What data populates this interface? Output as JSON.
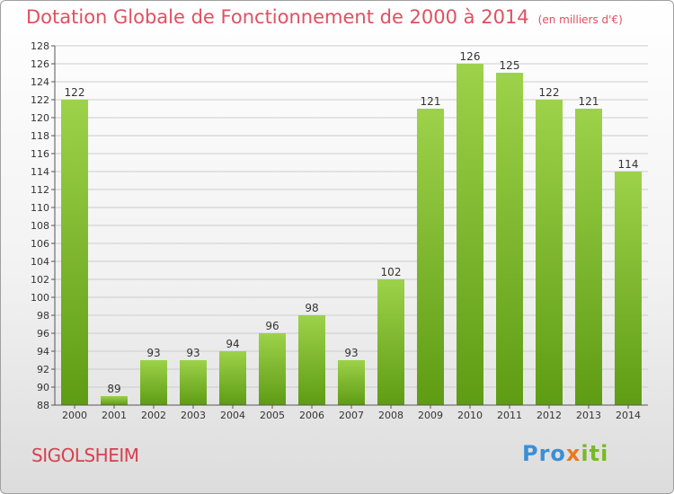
{
  "title": "Dotation Globale de Fonctionnement de 2000 à 2014",
  "subtitle": "(en milliers d'€)",
  "commune": "SIGOLSHEIM",
  "brand": {
    "part1": "Pro",
    "part2": "x",
    "part3": "iti"
  },
  "colors": {
    "bar_top": "#9dd24a",
    "bar_bottom": "#5e9c14",
    "title": "#e05060",
    "grid": "#cccccc"
  },
  "chart_data": {
    "type": "bar",
    "title": "Dotation Globale de Fonctionnement de 2000 à 2014",
    "subtitle": "(en milliers d'€)",
    "categories": [
      "2000",
      "2001",
      "2002",
      "2003",
      "2004",
      "2005",
      "2006",
      "2007",
      "2008",
      "2009",
      "2010",
      "2011",
      "2012",
      "2013",
      "2014"
    ],
    "values": [
      122,
      89,
      93,
      93,
      94,
      96,
      98,
      93,
      102,
      121,
      126,
      125,
      122,
      121,
      114
    ],
    "ylim": [
      88,
      128
    ],
    "yticks": [
      88,
      90,
      92,
      94,
      96,
      98,
      100,
      102,
      104,
      106,
      108,
      110,
      112,
      114,
      116,
      118,
      120,
      122,
      124,
      126,
      128
    ],
    "grid": true,
    "xlabel": "",
    "ylabel": ""
  }
}
